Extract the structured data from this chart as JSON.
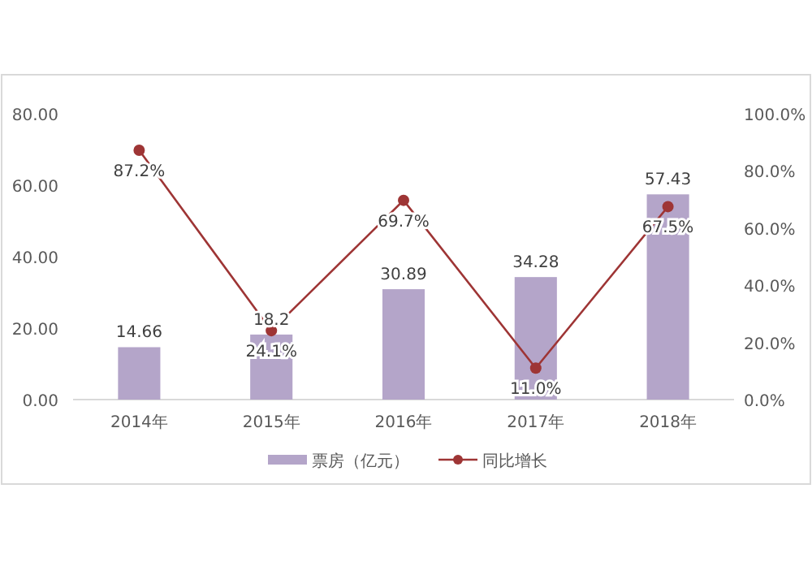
{
  "chart_data": {
    "type": "bar",
    "categories": [
      "2014年",
      "2015年",
      "2016年",
      "2017年",
      "2018年"
    ],
    "series": [
      {
        "name": "票房（亿元）",
        "color": "#b4a5c9",
        "values": [
          14.66,
          18.2,
          30.89,
          34.28,
          57.43
        ],
        "value_labels": [
          "14.66",
          "18.2",
          "30.89",
          "34.28",
          "57.43"
        ]
      },
      {
        "name": "同比增长",
        "type": "line",
        "axis": "y2",
        "color": "#9e3535",
        "marker": "circle",
        "values": [
          87.2,
          24.1,
          69.7,
          11.0,
          67.5
        ],
        "value_labels": [
          "87.2%",
          "24.1%",
          "69.7%",
          "11.0%",
          "67.5%"
        ]
      }
    ],
    "ylim": [
      0,
      80
    ],
    "yticks": [
      {
        "value": 0,
        "label": "0.00"
      },
      {
        "value": 20,
        "label": "20.00"
      },
      {
        "value": 40,
        "label": "40.00"
      },
      {
        "value": 60,
        "label": "60.00"
      },
      {
        "value": 80,
        "label": "80.00"
      }
    ],
    "y2lim": [
      0,
      100
    ],
    "y2ticks": [
      {
        "value": 0,
        "label": "0.0%"
      },
      {
        "value": 20,
        "label": "20.0%"
      },
      {
        "value": 40,
        "label": "40.0%"
      },
      {
        "value": 60,
        "label": "60.0%"
      },
      {
        "value": 80,
        "label": "80.0%"
      },
      {
        "value": 100,
        "label": "100.0%"
      }
    ],
    "legend": "bottom",
    "grid": false
  }
}
